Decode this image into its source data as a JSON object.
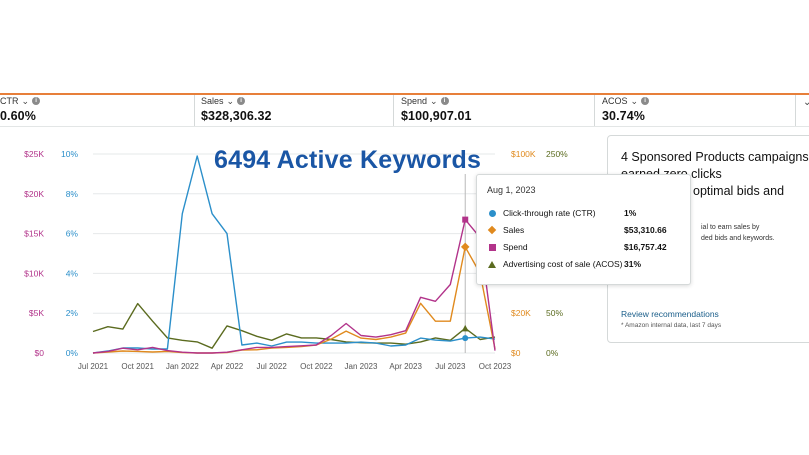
{
  "metrics": [
    {
      "label": "CTR",
      "value": "0.60%"
    },
    {
      "label": "Sales",
      "value": "$328,306.32"
    },
    {
      "label": "Spend",
      "value": "$100,907.01"
    },
    {
      "label": "ACOS",
      "value": "30.74%"
    }
  ],
  "overlay_title": "6494 Active Keywords",
  "tooltip": {
    "date": "Aug 1, 2023",
    "rows": [
      {
        "name": "Click-through rate (CTR)",
        "value": "1%",
        "color": "#2b8fca",
        "marker": "circle"
      },
      {
        "name": "Sales",
        "value": "$53,310.66",
        "color": "#e08a1e",
        "marker": "diamond"
      },
      {
        "name": "Spend",
        "value": "$16,757.42",
        "color": "#b2338a",
        "marker": "square"
      },
      {
        "name": "Advertising cost of sale (ACOS)",
        "value": "31%",
        "color": "#5b6b1f",
        "marker": "triangle"
      }
    ]
  },
  "panel": {
    "title": "4 Sponsored Products campaigns earned zero clicks",
    "title_line2": "optimal bids and",
    "body_line1": "ial to earn sales by",
    "body_line2": "ded bids and keywords.",
    "link": "Review recommendations",
    "footnote": "* Amazon internal data, last 7 days"
  },
  "chart_data": {
    "type": "line",
    "title": "",
    "x_labels": [
      "Jul 2021",
      "Oct 2021",
      "Jan 2022",
      "Apr 2022",
      "Jul 2022",
      "Oct 2022",
      "Jan 2023",
      "Apr 2023",
      "Jul 2023",
      "Oct 2023"
    ],
    "axes": {
      "spend": {
        "ticks": [
          "$0",
          "$5K",
          "$10K",
          "$15K",
          "$20K",
          "$25K"
        ],
        "range": [
          0,
          25000
        ],
        "color": "#b2338a"
      },
      "ctr": {
        "ticks": [
          "0%",
          "2%",
          "4%",
          "6%",
          "8%",
          "10%"
        ],
        "range": [
          0,
          10
        ],
        "color": "#2b8fca"
      },
      "sales": {
        "ticks": [
          "$0",
          "$20K",
          "$100K"
        ],
        "tick_values": [
          0,
          20000,
          100000
        ],
        "range": [
          0,
          100000
        ],
        "color": "#e08a1e"
      },
      "acos": {
        "ticks": [
          "0%",
          "50%",
          "250%"
        ],
        "tick_values": [
          0,
          50,
          250
        ],
        "range": [
          0,
          250
        ],
        "color": "#5b6b1f"
      }
    },
    "months": [
      "2021-07",
      "2021-08",
      "2021-09",
      "2021-10",
      "2021-11",
      "2021-12",
      "2022-01",
      "2022-02",
      "2022-03",
      "2022-04",
      "2022-05",
      "2022-06",
      "2022-07",
      "2022-08",
      "2022-09",
      "2022-10",
      "2022-11",
      "2022-12",
      "2023-01",
      "2023-02",
      "2023-03",
      "2023-04",
      "2023-05",
      "2023-06",
      "2023-07",
      "2023-08",
      "2023-09",
      "2023-10"
    ],
    "series": [
      {
        "name": "Click-through rate (CTR)",
        "axis": "ctr",
        "color": "#2b8fca",
        "values": [
          0,
          0.1,
          0.25,
          0.25,
          0.2,
          0.2,
          7,
          9.9,
          7,
          6,
          0.4,
          0.5,
          0.35,
          0.55,
          0.55,
          0.5,
          0.5,
          0.5,
          0.55,
          0.5,
          0.35,
          0.4,
          0.75,
          0.65,
          0.6,
          0.75,
          0.8,
          0.7
        ]
      },
      {
        "name": "Sales",
        "axis": "sales",
        "color": "#e08a1e",
        "values": [
          0,
          500,
          1000,
          800,
          500,
          800,
          200,
          0,
          0,
          200,
          1500,
          1600,
          2500,
          2800,
          3200,
          4000,
          7000,
          11000,
          7500,
          6800,
          8000,
          10000,
          25000,
          16000,
          16000,
          53310.66,
          40000,
          2000
        ]
      },
      {
        "name": "Spend",
        "axis": "spend",
        "color": "#b2338a",
        "values": [
          0,
          200,
          600,
          400,
          700,
          300,
          100,
          0,
          0,
          100,
          400,
          700,
          700,
          800,
          900,
          1000,
          2200,
          3700,
          2200,
          2000,
          2300,
          2800,
          7000,
          6500,
          8600,
          16757.42,
          14500,
          300
        ]
      },
      {
        "name": "Advertising cost of sale (ACOS)",
        "axis": "acos",
        "color": "#5b6b1f",
        "values": [
          27,
          33,
          30,
          62,
          40,
          19,
          16,
          14,
          6,
          34,
          28,
          21,
          16,
          24,
          19,
          19,
          17,
          14,
          13,
          12.5,
          12.5,
          11,
          14,
          19,
          16,
          31,
          17,
          20
        ]
      }
    ],
    "hover_index": 25
  }
}
